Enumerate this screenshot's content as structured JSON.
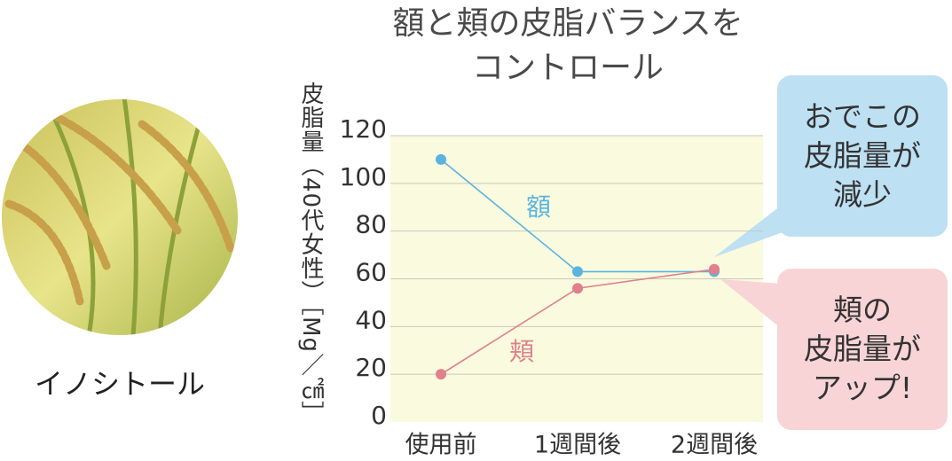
{
  "photo_caption": "イノシトール",
  "chart_data": {
    "type": "line",
    "title": "額と頬の皮脂バランスを\nコントロール",
    "y_label": "皮脂量（40代女性）［Mg／㎠］",
    "categories": [
      "使用前",
      "1週間後",
      "2週間後"
    ],
    "series": [
      {
        "name": "額",
        "color": "#5ab4e0",
        "values": [
          110,
          63,
          63
        ]
      },
      {
        "name": "頬",
        "color": "#e0808a",
        "values": [
          20,
          56,
          64
        ]
      }
    ],
    "ylim": [
      0,
      120
    ],
    "yticks": [
      0,
      20,
      40,
      60,
      80,
      100,
      120
    ],
    "grid": true,
    "annotations": [
      {
        "text": "おでこの\n皮脂量が\n減少",
        "color": "#bde0f3"
      },
      {
        "text": "頬の\n皮脂量が\nアップ!",
        "color": "#f8d4d7"
      }
    ]
  }
}
